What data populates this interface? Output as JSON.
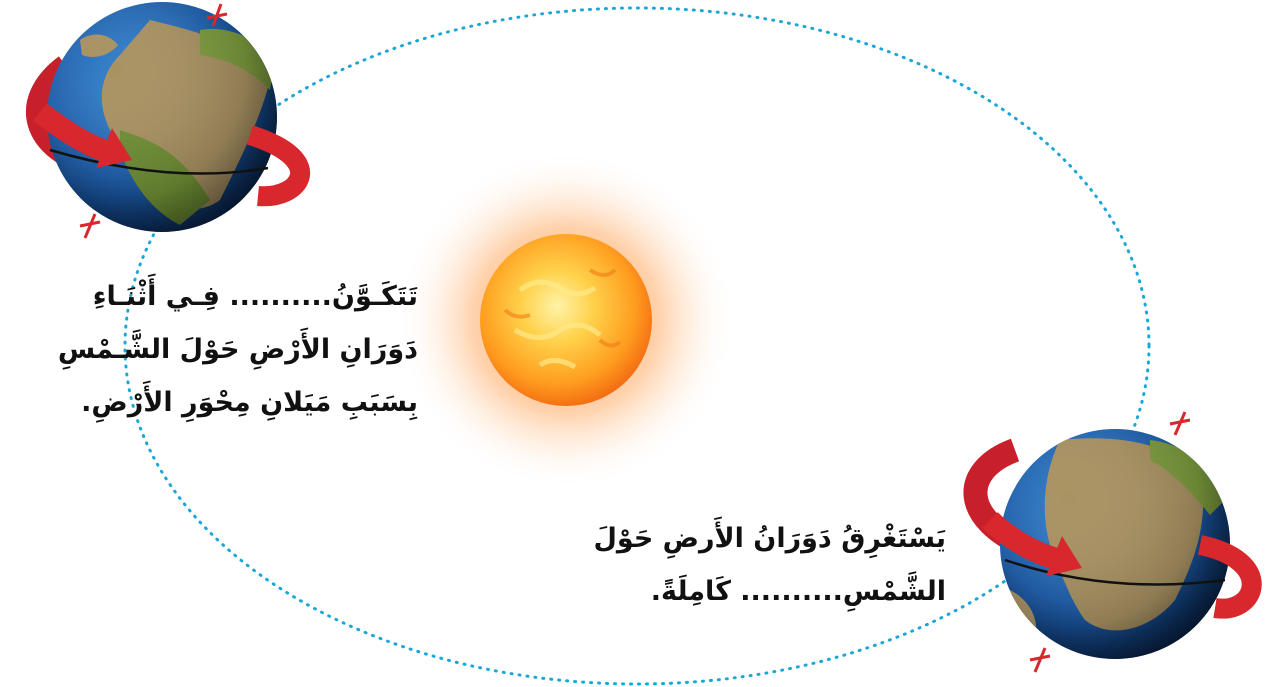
{
  "caption_seasons": {
    "line_1": "تَتَكَـوَّنُ.......... فِـي أَثْنَـاءِ",
    "line_2": "دَوَرَانِ الأَرْضِ حَوْلَ الشَّـمْسِ",
    "line_3": "بِسَبَبِ مَيَلانِ مِحْوَرِ الأَرْضِ."
  },
  "caption_year": {
    "line_1": "يَسْتَغْرِقُ دَوَرَانُ الأَرضِ حَوْلَ",
    "line_2": "الشَّمْسِ.......... كَامِلَةً."
  },
  "colors": {
    "orbit": "#1aa7d6",
    "arrow": "#d8282e",
    "sun_core": "#ffb21a",
    "ocean": "#1d5fae",
    "land": "#a99262"
  }
}
